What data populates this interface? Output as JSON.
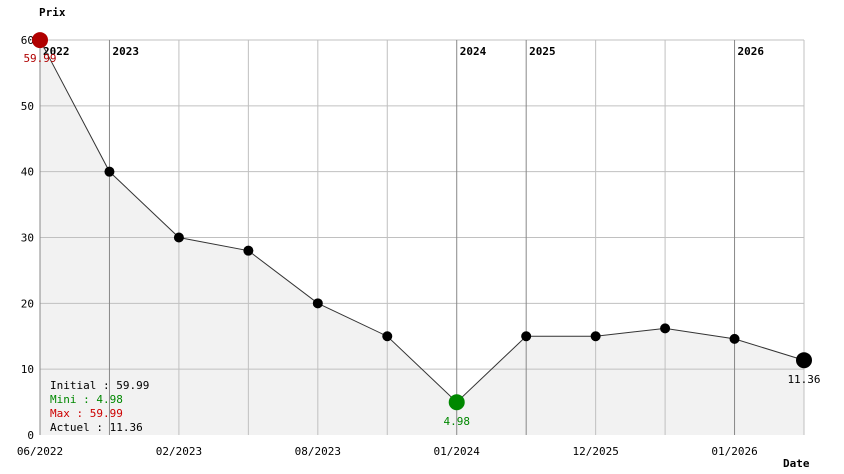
{
  "chart_data": {
    "type": "line",
    "ylabel": "Prix",
    "xlabel": "Date",
    "ylim": [
      0,
      60
    ],
    "yticks": [
      0,
      10,
      20,
      30,
      40,
      50,
      60
    ],
    "grid": true,
    "x": [
      "06/2022",
      "",
      "02/2023",
      "",
      "08/2023",
      "",
      "01/2024",
      "",
      "12/2025",
      "",
      "01/2026",
      ""
    ],
    "values": [
      59.99,
      40,
      30,
      28,
      20,
      15,
      4.98,
      15,
      15,
      16.2,
      14.6,
      11.36
    ],
    "year_markers": [
      {
        "index": 0,
        "label": "2022"
      },
      {
        "index": 1,
        "label": "2023"
      },
      {
        "index": 6,
        "label": "2024"
      },
      {
        "index": 7,
        "label": "2025"
      },
      {
        "index": 10,
        "label": "2026"
      }
    ],
    "annotations": {
      "max": {
        "index": 0,
        "label": "59.99",
        "color": "#b00000"
      },
      "min": {
        "index": 6,
        "label": "4.98",
        "color": "#008800"
      },
      "current": {
        "index": 11,
        "label": "11.36",
        "color": "#000000"
      }
    },
    "summary": [
      {
        "text": "Initial : 59.99",
        "color": "#000000"
      },
      {
        "text": "Mini : 4.98",
        "color": "#008800"
      },
      {
        "text": "Max : 59.99",
        "color": "#cc0000"
      },
      {
        "text": "Actuel : 11.36",
        "color": "#000000"
      }
    ],
    "colors": {
      "fill": "#f2f2f2",
      "grid": "#c0c0c0",
      "year_line": "#888888",
      "line": "#333333",
      "point": "#000000"
    }
  }
}
